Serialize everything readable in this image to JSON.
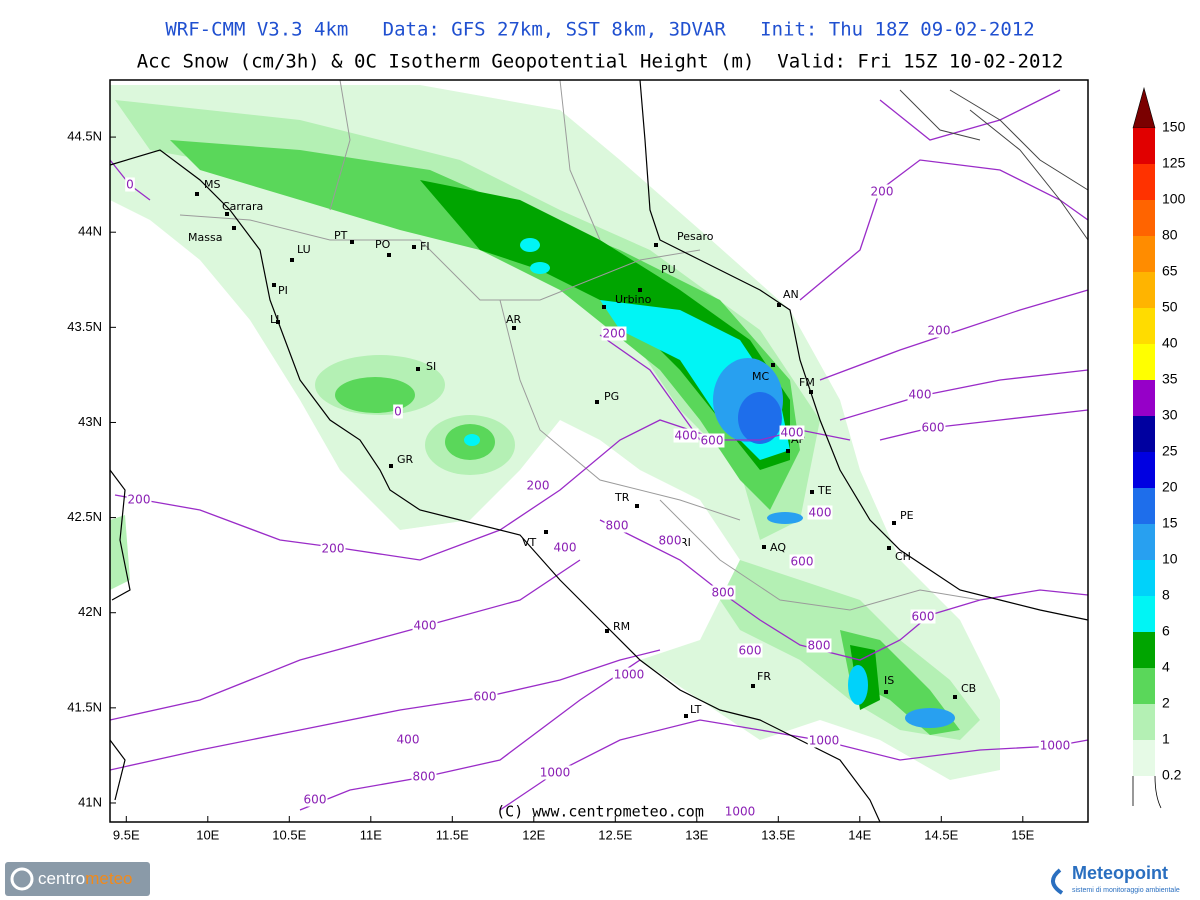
{
  "header": {
    "line1": "WRF-CMM V3.3 4km   Data: GFS 27km, SST 8km, 3DVAR   Init: Thu 18Z 09-02-2012",
    "line2": "Acc Snow (cm/3h) & 0C Isotherm Geopotential Height (m)  Valid: Fri 15Z 10-02-2012"
  },
  "map": {
    "xlim": [
      9.4,
      15.4
    ],
    "ylim": [
      40.9,
      44.8
    ],
    "xticks": [
      {
        "value": 9.5,
        "label": "9.5E"
      },
      {
        "value": 10,
        "label": "10E"
      },
      {
        "value": 10.5,
        "label": "10.5E"
      },
      {
        "value": 11,
        "label": "11E"
      },
      {
        "value": 11.5,
        "label": "11.5E"
      },
      {
        "value": 12,
        "label": "12E"
      },
      {
        "value": 12.5,
        "label": "12.5E"
      },
      {
        "value": 13,
        "label": "13E"
      },
      {
        "value": 13.5,
        "label": "13.5E"
      },
      {
        "value": 14,
        "label": "14E"
      },
      {
        "value": 14.5,
        "label": "14.5E"
      },
      {
        "value": 15,
        "label": "15E"
      }
    ],
    "yticks": [
      {
        "value": 41,
        "label": "41N"
      },
      {
        "value": 41.5,
        "label": "41.5N"
      },
      {
        "value": 42,
        "label": "42N"
      },
      {
        "value": 42.5,
        "label": "42.5N"
      },
      {
        "value": 43,
        "label": "43N"
      },
      {
        "value": 43.5,
        "label": "43.5N"
      },
      {
        "value": 44,
        "label": "44N"
      },
      {
        "value": 44.5,
        "label": "44.5N"
      }
    ],
    "cities": [
      "MS",
      "Carrara",
      "Massa",
      "LU",
      "PT",
      "PO",
      "FI",
      "PI",
      "LI",
      "SI",
      "AR",
      "GR",
      "PG",
      "PU",
      "Urbino",
      "Pesaro",
      "AN",
      "MC",
      "FM",
      "AP",
      "TE",
      "PE",
      "CH",
      "AQ",
      "TR",
      "RI",
      "VT",
      "RM",
      "FR",
      "LT",
      "IS",
      "CB"
    ],
    "contour_labels": [
      0,
      0,
      200,
      200,
      200,
      200,
      200,
      200,
      400,
      400,
      400,
      400,
      400,
      400,
      400,
      600,
      600,
      600,
      600,
      600,
      600,
      600,
      800,
      800,
      800,
      800,
      800,
      1000,
      1000,
      1000,
      1000,
      1000
    ],
    "copyright": "(C) www.centrometeo.com"
  },
  "colorbar": {
    "levels": [
      0.2,
      1,
      2,
      4,
      6,
      8,
      10,
      15,
      20,
      25,
      30,
      35,
      40,
      50,
      65,
      80,
      100,
      125,
      150
    ],
    "colors": [
      "#e6fae6",
      "#b4f0b4",
      "#5ad75a",
      "#00a500",
      "#00f5f5",
      "#00d2fa",
      "#28a0f0",
      "#1e6eeb",
      "#0000e1",
      "#0000a0",
      "#9600c8",
      "#ffff00",
      "#ffdc00",
      "#ffb400",
      "#ff8c00",
      "#ff6400",
      "#ff3200",
      "#e10000"
    ],
    "over_color": "#7a0000"
  },
  "logos": {
    "left": [
      "centro",
      "meteo"
    ],
    "right": "Meteopoint",
    "right_tagline": "sistemi di monitoraggio ambientale"
  }
}
